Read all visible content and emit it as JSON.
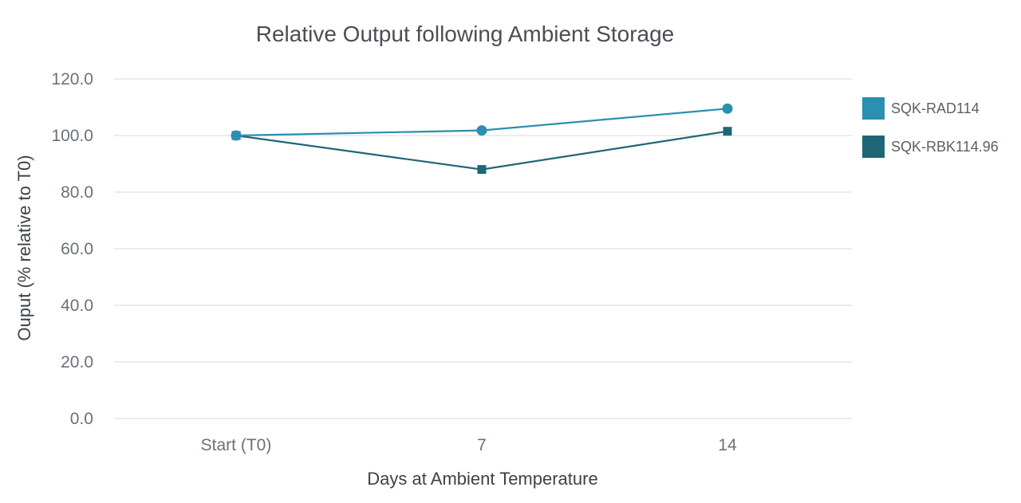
{
  "chart_data": {
    "type": "line",
    "title": "Relative Output following Ambient Storage",
    "xlabel": "Days at Ambient Temperature",
    "ylabel": "Ouput (% relative to T0)",
    "categories": [
      "Start (T0)",
      "7",
      "14"
    ],
    "y_ticks": [
      "0.0",
      "20.0",
      "40.0",
      "60.0",
      "80.0",
      "100.0",
      "120.0"
    ],
    "ylim": [
      0,
      120
    ],
    "grid": true,
    "legend_position": "right",
    "series": [
      {
        "name": "SQK-RAD114",
        "values": [
          100,
          101.8,
          109.5
        ],
        "color": "#2a8fb0",
        "marker": "circle"
      },
      {
        "name": "SQK-RBK114.96",
        "values": [
          100,
          88,
          101.5
        ],
        "color": "#1f6677",
        "marker": "square"
      }
    ]
  }
}
